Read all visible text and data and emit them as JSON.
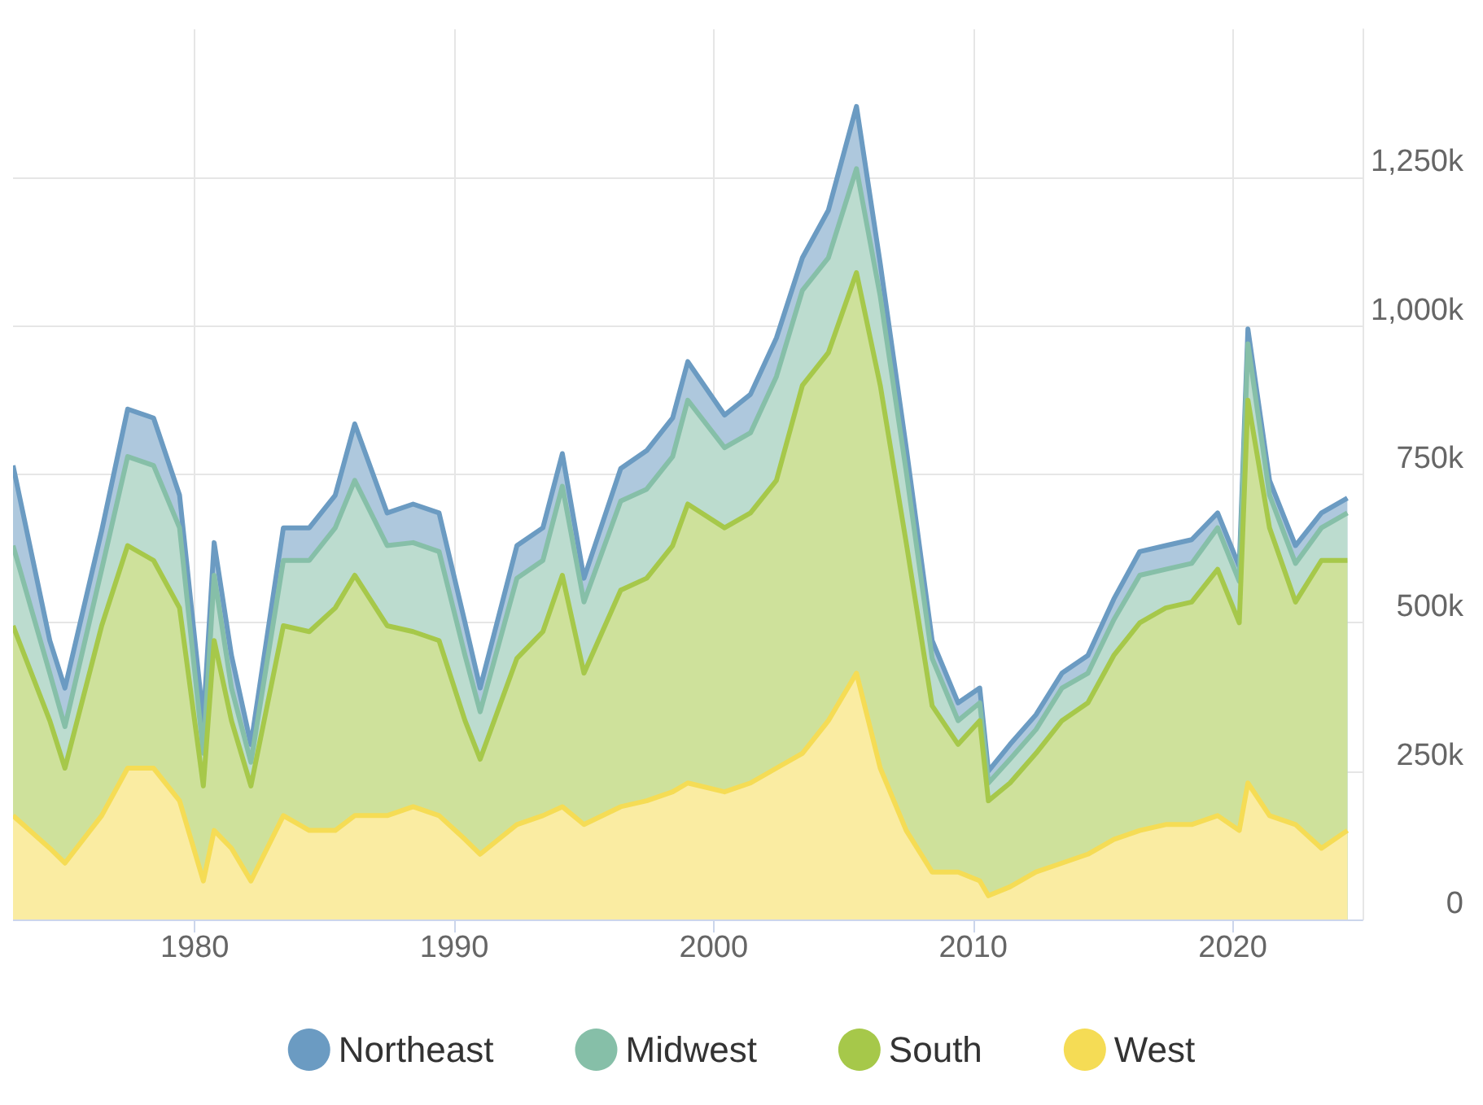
{
  "chart_data": {
    "type": "area",
    "stacked": true,
    "legend": "bottom",
    "grid": true,
    "marker": "none",
    "x": [
      "1973-01",
      "1974-06",
      "1975-01",
      "1976-06",
      "1977-06",
      "1978-06",
      "1979-06",
      "1980-05",
      "1980-10",
      "1981-06",
      "1982-03",
      "1983-06",
      "1984-06",
      "1985-06",
      "1986-03",
      "1987-06",
      "1988-06",
      "1989-06",
      "1990-06",
      "1991-01",
      "1992-06",
      "1993-06",
      "1994-03",
      "1995-01",
      "1996-06",
      "1997-06",
      "1998-06",
      "1999-01",
      "2000-06",
      "2001-06",
      "2002-06",
      "2003-06",
      "2004-06",
      "2005-07",
      "2006-06",
      "2007-06",
      "2008-06",
      "2009-06",
      "2010-04",
      "2010-08",
      "2011-06",
      "2012-06",
      "2013-06",
      "2014-06",
      "2015-06",
      "2016-06",
      "2017-06",
      "2018-06",
      "2019-06",
      "2020-04",
      "2020-08",
      "2021-06",
      "2022-06",
      "2023-06",
      "2024-06"
    ],
    "xlim": [
      "1973-01",
      "2025-01"
    ],
    "xticks": [
      "1980",
      "1990",
      "2000",
      "2010",
      "2020"
    ],
    "ylim": [
      0,
      1500
    ],
    "yticks": [
      {
        "value": 0,
        "label": "0"
      },
      {
        "value": 250,
        "label": "250k"
      },
      {
        "value": 500,
        "label": "500k"
      },
      {
        "value": 750,
        "label": "750k"
      },
      {
        "value": 1000,
        "label": "1,000k"
      },
      {
        "value": 1250,
        "label": "1,250k"
      }
    ],
    "series": [
      {
        "name": "West",
        "color": "#f5dc55",
        "values": [
          175,
          120,
          95,
          175,
          255,
          255,
          200,
          65,
          150,
          120,
          65,
          175,
          150,
          150,
          175,
          175,
          190,
          175,
          135,
          110,
          160,
          175,
          190,
          160,
          190,
          200,
          215,
          230,
          215,
          230,
          255,
          280,
          335,
          415,
          255,
          150,
          80,
          80,
          65,
          40,
          55,
          80,
          95,
          110,
          135,
          150,
          160,
          160,
          175,
          150,
          230,
          175,
          160,
          120,
          150
        ]
      },
      {
        "name": "South",
        "color": "#a6c84a",
        "values": [
          320,
          215,
          160,
          320,
          375,
          350,
          325,
          160,
          320,
          215,
          160,
          320,
          335,
          375,
          405,
          320,
          295,
          295,
          200,
          160,
          280,
          310,
          390,
          255,
          365,
          375,
          415,
          470,
          445,
          455,
          485,
          620,
          620,
          675,
          645,
          485,
          280,
          215,
          270,
          160,
          175,
          200,
          240,
          255,
          310,
          350,
          365,
          375,
          415,
          350,
          645,
          485,
          375,
          485,
          455
        ]
      },
      {
        "name": "Midwest",
        "color": "#86bfa8",
        "values": [
          135,
          80,
          70,
          95,
          150,
          160,
          135,
          55,
          110,
          55,
          40,
          110,
          120,
          135,
          160,
          135,
          150,
          150,
          110,
          80,
          135,
          120,
          150,
          120,
          150,
          150,
          150,
          175,
          135,
          135,
          175,
          160,
          160,
          175,
          150,
          120,
          80,
          40,
          30,
          30,
          40,
          40,
          55,
          50,
          60,
          80,
          65,
          65,
          70,
          70,
          95,
          55,
          65,
          55,
          80
        ]
      },
      {
        "name": "Northeast",
        "color": "#6b9bc2",
        "values": [
          135,
          55,
          65,
          65,
          80,
          80,
          55,
          55,
          55,
          55,
          30,
          55,
          55,
          55,
          95,
          55,
          65,
          65,
          55,
          40,
          55,
          55,
          55,
          40,
          55,
          65,
          65,
          65,
          55,
          65,
          65,
          55,
          80,
          105,
          55,
          40,
          30,
          30,
          25,
          20,
          25,
          25,
          25,
          30,
          35,
          40,
          40,
          40,
          25,
          25,
          25,
          25,
          30,
          25,
          25
        ]
      }
    ]
  }
}
